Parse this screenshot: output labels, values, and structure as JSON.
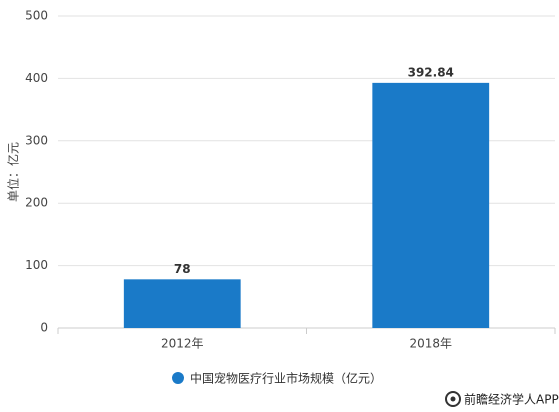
{
  "chart_data": {
    "type": "bar",
    "ylabel": "单位：亿元",
    "categories": [
      "2012年",
      "2018年"
    ],
    "series": [
      {
        "name": "中国宠物医疗行业市场规模（亿元）",
        "color": "#1a7ac8",
        "values": [
          78,
          392.84
        ]
      }
    ],
    "ylim": [
      0,
      500
    ],
    "yticks": [
      0,
      100,
      200,
      300,
      400,
      500
    ],
    "grid": true,
    "legend": "bottom"
  },
  "footer": "前瞻经济学人APP"
}
